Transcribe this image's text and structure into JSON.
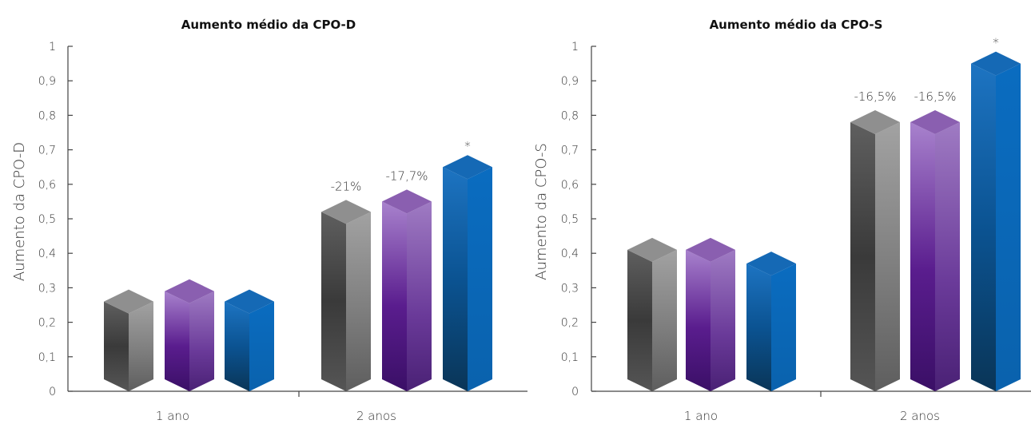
{
  "chart_data": [
    {
      "type": "bar",
      "title": "Aumento médio da CPO-D",
      "ylabel": "Aumento da CPO-D",
      "categories": [
        "1 ano",
        "2 anos"
      ],
      "ylim": [
        0,
        1
      ],
      "yticks": [
        "0",
        "0,1",
        "0,2",
        "0,3",
        "0,4",
        "0,5",
        "0,6",
        "0,7",
        "0,8",
        "0,9",
        "1"
      ],
      "grid": false,
      "legend": "none",
      "series": [
        {
          "color": "#8f8f8f",
          "values": [
            0.26,
            0.52
          ],
          "labels": [
            "",
            "-21%"
          ]
        },
        {
          "color": "#8a5fb0",
          "values": [
            0.29,
            0.55
          ],
          "labels": [
            "",
            "-17,7%"
          ]
        },
        {
          "color": "#1569b5",
          "values": [
            0.26,
            0.65
          ],
          "labels": [
            "",
            "*"
          ]
        }
      ]
    },
    {
      "type": "bar",
      "title": "Aumento médio da CPO-S",
      "ylabel": "Aumento da CPO-S",
      "categories": [
        "1 ano",
        "2 anos"
      ],
      "ylim": [
        0,
        1
      ],
      "yticks": [
        "0",
        "0,1",
        "0,2",
        "0,3",
        "0,4",
        "0,5",
        "0,6",
        "0,7",
        "0,8",
        "0,9",
        "1"
      ],
      "grid": false,
      "legend": "none",
      "series": [
        {
          "color": "#8f8f8f",
          "values": [
            0.41,
            0.78
          ],
          "labels": [
            "",
            "-16,5%"
          ]
        },
        {
          "color": "#8a5fb0",
          "values": [
            0.41,
            0.78
          ],
          "labels": [
            "",
            "-16,5%"
          ]
        },
        {
          "color": "#1569b5",
          "values": [
            0.37,
            0.95
          ],
          "labels": [
            "",
            "*"
          ]
        }
      ]
    }
  ]
}
